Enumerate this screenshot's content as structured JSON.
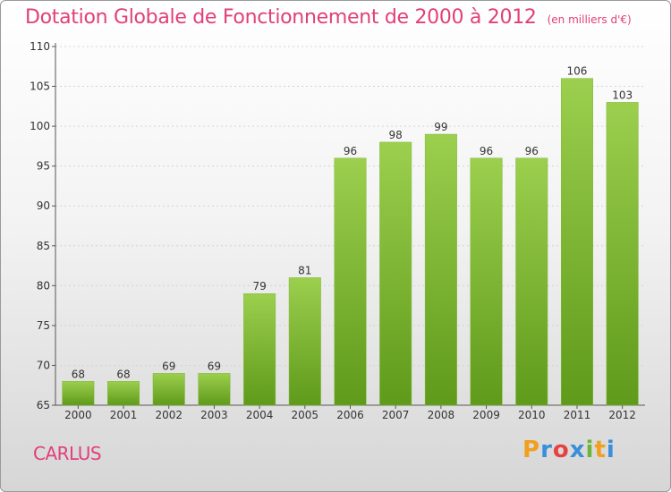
{
  "header": {
    "title": "Dotation Globale de Fonctionnement de 2000 à 2012",
    "subtitle": "(en milliers d'€)"
  },
  "footer": {
    "place": "CARLUS",
    "logo_letters": [
      "P",
      "r",
      "o",
      "x",
      "i",
      "t",
      "i"
    ],
    "logo_colors": [
      "#f0a020",
      "#3a8fd8",
      "#e84040",
      "#3a8fd8",
      "#6ab53a",
      "#f0a020",
      "#3a8fd8"
    ]
  },
  "chart_data": {
    "type": "bar",
    "title": "Dotation Globale de Fonctionnement de 2000 à 2012",
    "subtitle": "(en milliers d'€)",
    "xlabel": "",
    "ylabel": "",
    "categories": [
      "2000",
      "2001",
      "2002",
      "2003",
      "2004",
      "2005",
      "2006",
      "2007",
      "2008",
      "2009",
      "2010",
      "2011",
      "2012"
    ],
    "values": [
      68,
      68,
      69,
      69,
      79,
      81,
      96,
      98,
      99,
      96,
      96,
      106,
      103
    ],
    "ylim": [
      65,
      110
    ],
    "yticks": [
      65,
      70,
      75,
      80,
      85,
      90,
      95,
      100,
      105,
      110
    ],
    "grid": true,
    "bar_color_top": "#9ccf4e",
    "bar_color_bottom": "#5f9a1a"
  }
}
